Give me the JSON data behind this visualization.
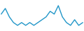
{
  "x": [
    0,
    1,
    2,
    3,
    4,
    5,
    6,
    7,
    8,
    9,
    10,
    11,
    12,
    13,
    14,
    15,
    16,
    17,
    18,
    19,
    20
  ],
  "y": [
    6,
    8,
    5,
    3,
    2,
    3,
    2,
    3,
    2,
    3,
    4,
    5,
    7,
    6,
    9,
    5,
    3,
    2,
    4,
    2,
    3
  ],
  "line_color": "#2196c8",
  "linewidth": 1.0,
  "background_color": "#ffffff",
  "ylim_min": 0,
  "ylim_max": 11
}
